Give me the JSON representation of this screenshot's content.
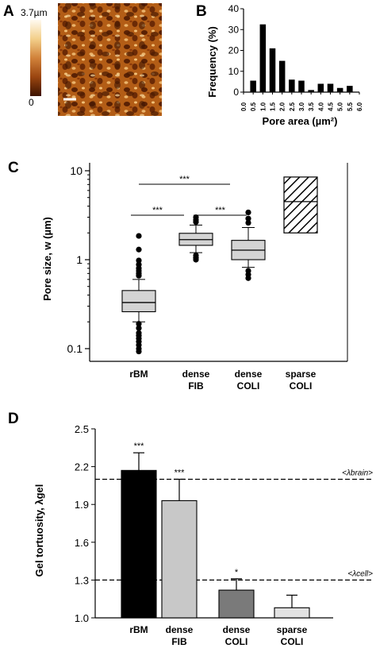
{
  "panels": {
    "a": "A",
    "b": "B",
    "c": "C",
    "d": "D"
  },
  "panel_a": {
    "colorbar_max": "3.7µm",
    "colorbar_min": "0"
  },
  "chart_data": [
    {
      "panel": "B",
      "type": "bar",
      "xlabel": "Pore area (µm²)",
      "ylabel": "Frequency (%)",
      "ylim": [
        0,
        40
      ],
      "yticks": [
        "0",
        "10",
        "20",
        "30",
        "40"
      ],
      "xticks": [
        "0.0",
        "0.5",
        "1.0",
        "1.5",
        "2.0",
        "2.5",
        "3.0",
        "3.5",
        "4.0",
        "4.5",
        "5.0",
        "5.5",
        "6.0"
      ],
      "bin_centers": [
        0.5,
        1.0,
        1.5,
        2.0,
        2.5,
        3.0,
        3.5,
        4.0,
        4.5,
        5.0,
        5.5
      ],
      "values": [
        5.5,
        32.5,
        21,
        15,
        6,
        5.5,
        1,
        4,
        4,
        2,
        3
      ]
    },
    {
      "panel": "C",
      "type": "box",
      "ylabel": "Pore size, w (µm)",
      "yscale": "log",
      "ylim": [
        0.08,
        12
      ],
      "yticks": [
        "0.1",
        "1",
        "10"
      ],
      "categories": [
        "rBM",
        "dense FIB",
        "dense COLI",
        "sparse COLI"
      ],
      "boxes": [
        {
          "q1": 0.26,
          "median": 0.33,
          "q3": 0.45,
          "whisker_low": 0.2,
          "whisker_high": 0.6,
          "outliers": [
            1.85,
            1.3,
            0.98,
            0.88,
            0.8,
            0.75,
            0.7,
            0.66,
            0.19,
            0.17,
            0.15,
            0.14,
            0.13,
            0.12,
            0.11,
            0.1,
            0.093
          ]
        },
        {
          "q1": 1.45,
          "median": 1.68,
          "q3": 1.98,
          "whisker_low": 1.2,
          "whisker_high": 2.45,
          "outliers": [
            3.0,
            2.8,
            2.65,
            1.12,
            1.05,
            1.0
          ]
        },
        {
          "q1": 1.0,
          "median": 1.28,
          "q3": 1.65,
          "whisker_low": 0.82,
          "whisker_high": 2.3,
          "outliers": [
            3.4,
            2.9,
            2.6,
            0.75,
            0.68,
            0.62
          ]
        },
        {
          "range_low": 2.0,
          "range_high": 8.5,
          "mid": 4.5,
          "hatched": true
        }
      ],
      "comparisons": [
        {
          "from": "rBM",
          "to": "dense FIB",
          "label": "***"
        },
        {
          "from": "dense FIB",
          "to": "dense COLI",
          "label": "***"
        },
        {
          "from": "rBM",
          "to": "dense COLI",
          "label": "***"
        }
      ]
    },
    {
      "panel": "D",
      "type": "bar",
      "ylabel": "Gel tortuosity, λgel",
      "ylim": [
        1.0,
        2.5
      ],
      "yticks": [
        "1.0",
        "1.3",
        "1.6",
        "1.9",
        "2.2",
        "2.5"
      ],
      "categories": [
        "rBM",
        "dense FIB",
        "dense COLI",
        "sparse COLI"
      ],
      "values": [
        2.17,
        1.93,
        1.22,
        1.08
      ],
      "errors": [
        0.14,
        0.17,
        0.09,
        0.1
      ],
      "significance": [
        "***",
        "***",
        "*",
        ""
      ],
      "colors": [
        "#000000",
        "#c8c8c8",
        "#7a7a7a",
        "#e2e2e2"
      ],
      "reference_lines": [
        {
          "value": 2.1,
          "label": "<λbrain>"
        },
        {
          "value": 1.3,
          "label": "<λcell>"
        }
      ]
    }
  ]
}
